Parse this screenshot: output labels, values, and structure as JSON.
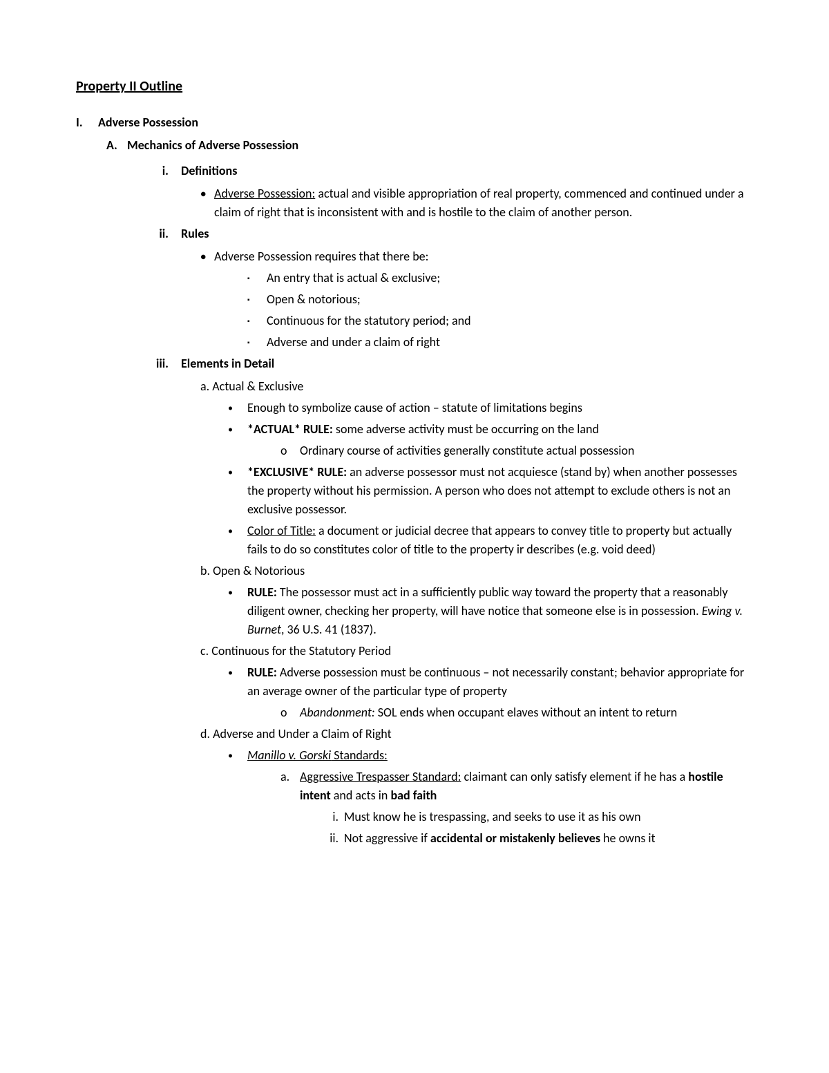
{
  "title": "Property II Outline",
  "section_I": {
    "marker": "I.",
    "label": "Adverse Possession"
  },
  "section_A": {
    "marker": "A.",
    "label": "Mechanics of Adverse Possession"
  },
  "defs": {
    "marker": "i.",
    "label": "Definitions",
    "ap_term": "Adverse Possession:",
    "ap_def": " actual and visible appropriation of real property, commenced and continued under a claim of right that is inconsistent with and is hostile to the claim of another person."
  },
  "rules": {
    "marker": "ii.",
    "label": "Rules",
    "intro": "Adverse Possession requires that there be:",
    "r1": "An entry that is actual & exclusive;",
    "r2": "Open & notorious;",
    "r3": "Continuous for the statutory period; and",
    "r4": "Adverse and under a claim of right"
  },
  "elements": {
    "marker": "iii.",
    "label": "Elements in Detail",
    "a": {
      "heading": "a. Actual & Exclusive",
      "p1": "Enough to symbolize cause of action – statute of limitations begins",
      "p2_label": "*ACTUAL* RULE:",
      "p2_text": " some adverse activity must be occurring on the land",
      "p2_sub": "Ordinary course of activities generally constitute actual possession",
      "p3_label": "*EXCLUSIVE* RULE:",
      "p3_text": " an adverse possessor must not acquiesce (stand by) when another possesses the property without his permission. A person who does not attempt to exclude others is not an exclusive possessor.",
      "p4_label": "Color of Title:",
      "p4_text": " a document or judicial decree that appears to convey title to property but actually fails to do so constitutes color of title to the property ir describes (e.g. void deed)"
    },
    "b": {
      "heading": "b. Open & Notorious",
      "rule_label": "RULE:",
      "rule_text_1": " The possessor must act in a sufficiently public way toward the property that a reasonably diligent owner, checking her property, will have notice that someone else is in possession. ",
      "case": "Ewing v. Burnet",
      "cite": ", 36 U.S. 41 (1837)."
    },
    "c": {
      "heading": "c. Continuous for the Statutory Period",
      "rule_label": "RULE:",
      "rule_text": " Adverse possession must be continuous – not necessarily constant; behavior appropriate for an average owner of the particular type of property",
      "abandon_label": "Abandonment:",
      "abandon_text": " SOL ends when occupant elaves without an intent to return"
    },
    "d": {
      "heading": "d. Adverse and Under a Claim of Right",
      "case": "Manillo v. Gorski",
      "case_suffix": " Standards:",
      "std_a_label": "Aggressive Trespasser Standard:",
      "std_a_text_1": " claimant can only satisfy element if he has a ",
      "std_a_bold_1": "hostile intent",
      "std_a_text_2": " and acts in ",
      "std_a_bold_2": "bad faith",
      "std_a_i": "Must know he is trespassing, and seeks to use it as his own",
      "std_a_ii_1": "Not aggressive if ",
      "std_a_ii_bold": "accidental or mistakenly believes",
      "std_a_ii_2": " he owns it"
    }
  },
  "markers": {
    "bullet": "●",
    "square": "▪",
    "dot": "•",
    "circle": "o",
    "a": "a.",
    "i": "i.",
    "ii": "ii."
  }
}
